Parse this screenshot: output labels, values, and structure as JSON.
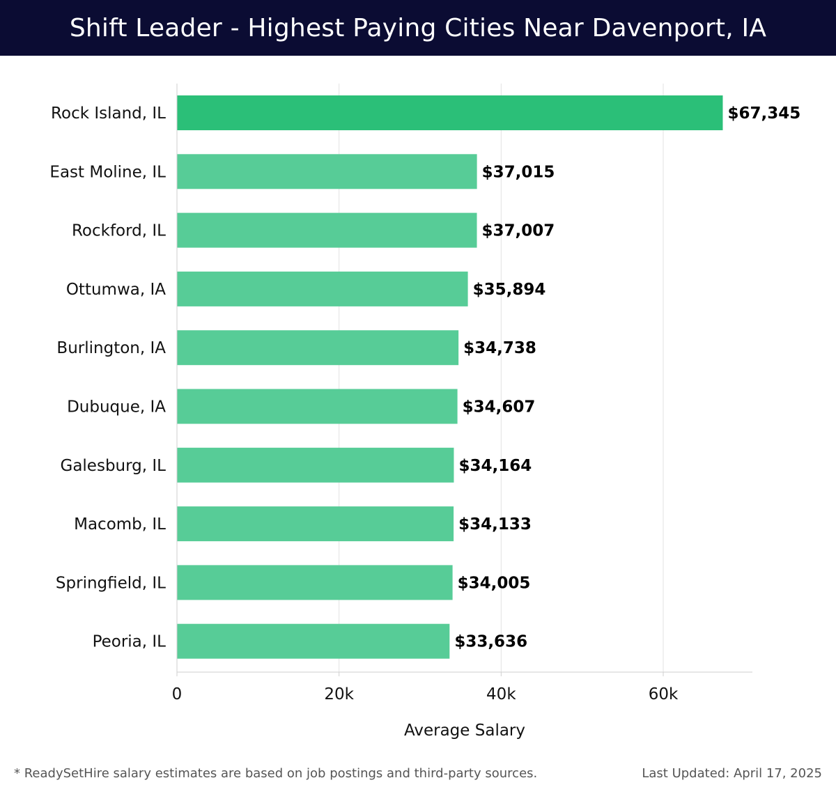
{
  "header": {
    "title": "Shift Leader - Highest Paying Cities Near Davenport, IA"
  },
  "chart_data": {
    "type": "bar",
    "orientation": "horizontal",
    "title": "Shift Leader - Highest Paying Cities Near Davenport, IA",
    "xlabel": "Average Salary",
    "ylabel": "",
    "categories": [
      "Rock Island, IL",
      "East Moline, IL",
      "Rockford, IL",
      "Ottumwa, IA",
      "Burlington, IA",
      "Dubuque, IA",
      "Galesburg, IL",
      "Macomb, IL",
      "Springfield, IL",
      "Peoria, IL"
    ],
    "values": [
      67345,
      37015,
      37007,
      35894,
      34738,
      34607,
      34164,
      34133,
      34005,
      33636
    ],
    "value_labels": [
      "$67,345",
      "$37,015",
      "$37,007",
      "$35,894",
      "$34,738",
      "$34,607",
      "$34,164",
      "$34,133",
      "$34,005",
      "$33,636"
    ],
    "xlim": [
      0,
      71000
    ],
    "xticks": [
      0,
      20000,
      40000,
      60000
    ],
    "xtick_labels": [
      "0",
      "20k",
      "40k",
      "60k"
    ],
    "grid": true,
    "colors": {
      "highlight": "#2bbf78",
      "default": "#57cc97"
    }
  },
  "footer": {
    "note": "* ReadySetHire salary estimates are based on job postings and third-party sources.",
    "updated": "Last Updated: April 17, 2025"
  }
}
